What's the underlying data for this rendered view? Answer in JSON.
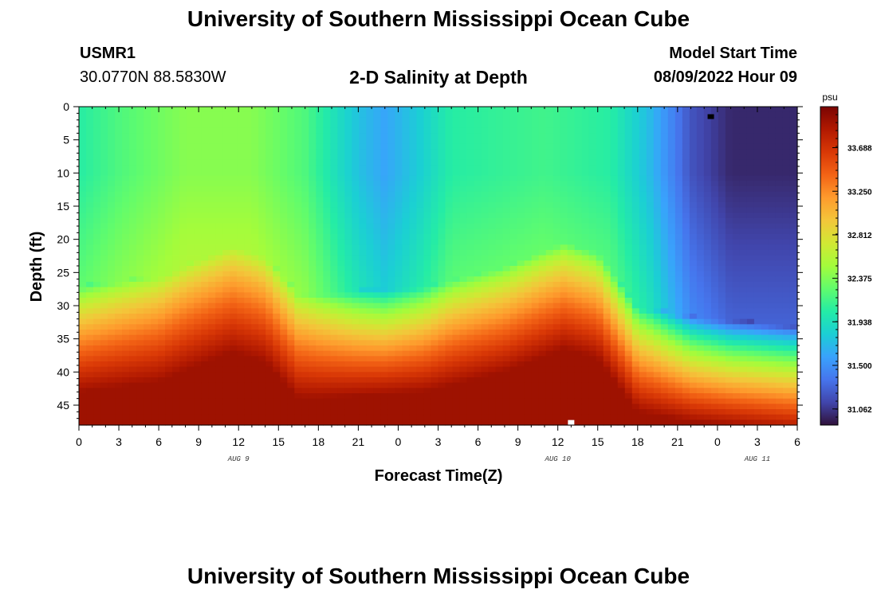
{
  "header": {
    "title": "University of Southern Mississippi Ocean Cube",
    "station_id": "USMR1",
    "station_coords": "30.0770N  88.5830W",
    "subtitle": "2-D Salinity at Depth",
    "start_label": "Model Start Time",
    "start_value": "08/09/2022 Hour 09"
  },
  "footer": {
    "title": "University of Southern Mississippi Ocean Cube"
  },
  "chart_data": {
    "type": "heatmap",
    "title": "2-D Salinity at Depth",
    "xlabel": "Forecast Time(Z)",
    "ylabel": "Depth (ft)",
    "x_hours": [
      0,
      54
    ],
    "x_ticks": [
      "0",
      "3",
      "6",
      "9",
      "12",
      "15",
      "18",
      "21",
      "0",
      "3",
      "6",
      "9",
      "12",
      "15",
      "18",
      "21",
      "0",
      "3",
      "6"
    ],
    "date_labels": [
      {
        "label": "AUG 9",
        "hour": 12
      },
      {
        "label": "AUG 10",
        "hour": 36
      },
      {
        "label": "AUG 11",
        "hour": 51
      }
    ],
    "ylim": [
      0,
      48
    ],
    "y_ticks": [
      0,
      5,
      10,
      15,
      20,
      25,
      30,
      35,
      40,
      45
    ],
    "y_reversed": true,
    "colorbar": {
      "unit": "psu",
      "range": [
        30.9,
        34.1
      ],
      "ticks": [
        "31.062",
        "31.500",
        "31.938",
        "32.375",
        "32.812",
        "33.250",
        "33.688"
      ],
      "colormap": [
        "#30123b",
        "#4145ab",
        "#4675ed",
        "#39a2fc",
        "#1bcfd4",
        "#24eca6",
        "#61fc6c",
        "#a4fc3b",
        "#d1e834",
        "#f3c63a",
        "#fe9b2d",
        "#f36315",
        "#d93806",
        "#b11901",
        "#7a0402"
      ]
    },
    "halocline_depth_ft": [
      {
        "hour": 0,
        "depth": 30
      },
      {
        "hour": 6,
        "depth": 28.5
      },
      {
        "hour": 9,
        "depth": 26
      },
      {
        "hour": 11.5,
        "depth": 24
      },
      {
        "hour": 14,
        "depth": 25.5
      },
      {
        "hour": 16.5,
        "depth": 31
      },
      {
        "hour": 18,
        "depth": 31
      },
      {
        "hour": 26,
        "depth": 30
      },
      {
        "hour": 32,
        "depth": 27
      },
      {
        "hour": 36.5,
        "depth": 23.5
      },
      {
        "hour": 39,
        "depth": 25
      },
      {
        "hour": 42,
        "depth": 33
      },
      {
        "hour": 46,
        "depth": 34.5
      },
      {
        "hour": 54,
        "depth": 36
      }
    ],
    "surface_salinity_psu": [
      {
        "hour": 0,
        "value": 32.05
      },
      {
        "hour": 3,
        "value": 32.2
      },
      {
        "hour": 8,
        "value": 32.4
      },
      {
        "hour": 13,
        "value": 32.4
      },
      {
        "hour": 17,
        "value": 32.2
      },
      {
        "hour": 21,
        "value": 31.75
      },
      {
        "hour": 23,
        "value": 31.6
      },
      {
        "hour": 25.5,
        "value": 31.8
      },
      {
        "hour": 28,
        "value": 32.05
      },
      {
        "hour": 35,
        "value": 32.15
      },
      {
        "hour": 40,
        "value": 32.05
      },
      {
        "hour": 43,
        "value": 31.7
      },
      {
        "hour": 46,
        "value": 31.2
      },
      {
        "hour": 49,
        "value": 31.0
      },
      {
        "hour": 54,
        "value": 31.0
      }
    ],
    "markers": [
      {
        "hour": 47.5,
        "depth": 1.5,
        "color": "#000000"
      },
      {
        "hour": 37,
        "depth": 47.6,
        "color": "#ffffff"
      }
    ]
  }
}
